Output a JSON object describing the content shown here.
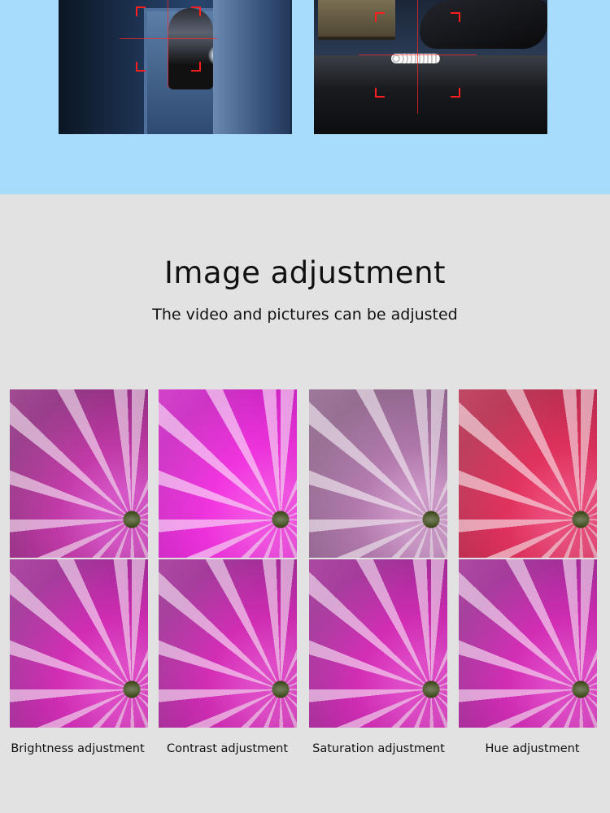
{
  "section": {
    "title": "Image adjustment",
    "subtitle": "The video and pictures can be adjusted"
  },
  "adjustments": [
    {
      "label": "Brightness adjustment",
      "top_tone": [
        "#e05ad0",
        "#c23aa8",
        "#8f2c7f"
      ],
      "bottom_tone": [
        "#ea4fd1",
        "#d22db5",
        "#9d2b93"
      ]
    },
    {
      "label": "Contrast adjustment",
      "top_tone": [
        "#ff58ee",
        "#f034de",
        "#c923c0"
      ],
      "bottom_tone": [
        "#ea4fd1",
        "#d22db5",
        "#9d2b93"
      ]
    },
    {
      "label": "Saturation adjustment",
      "top_tone": [
        "#d7a1d2",
        "#b27aad",
        "#8d6189"
      ],
      "bottom_tone": [
        "#ea4fd1",
        "#d22db5",
        "#9d2b93"
      ]
    },
    {
      "label": "Hue adjustment",
      "top_tone": [
        "#f75383",
        "#e1325e",
        "#b52a4c"
      ],
      "bottom_tone": [
        "#ea4fd1",
        "#d22db5",
        "#9d2b93"
      ]
    }
  ],
  "colors": {
    "top_band": "#a8dcfd",
    "background": "#e2e2e2",
    "reticle": "#ff1e1e"
  },
  "icons": {
    "left_photo": "surveillance-intruder-photo",
    "right_photo": "surveillance-theft-photo",
    "reticle": "target-reticle-icon"
  }
}
